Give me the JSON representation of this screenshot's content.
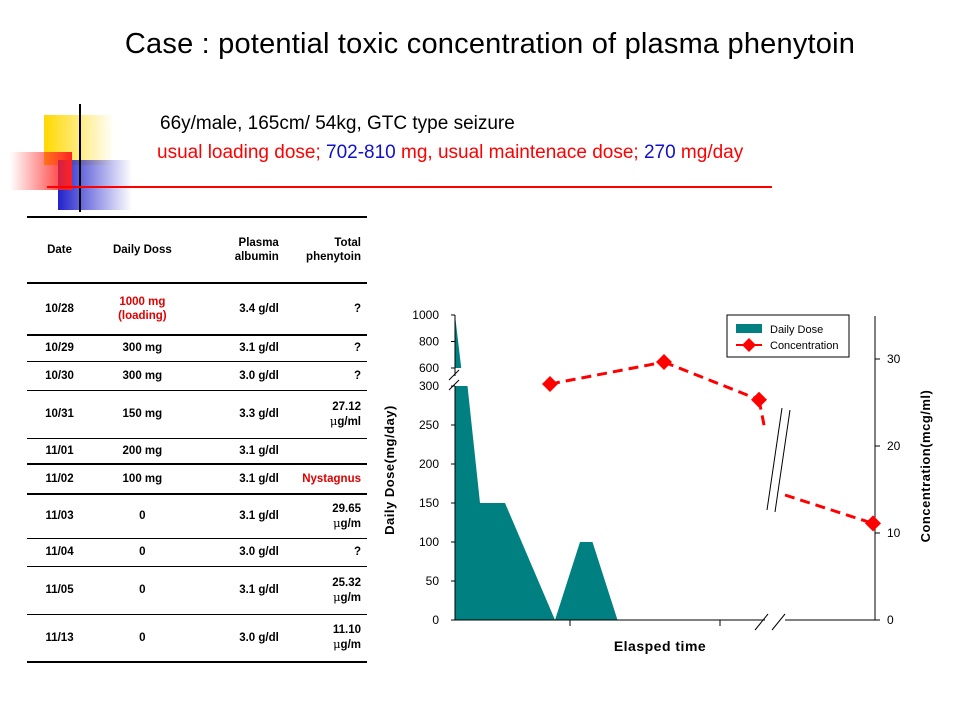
{
  "slide": {
    "title": "Case : potential toxic concentration of plasma phenytoin",
    "patient_line": "66y/male, 165cm/ 54kg, GTC type seizure",
    "dose_line": {
      "p1": "usual loading dose; ",
      "v1": "702-810",
      "p2": " mg, usual maintenace dose; ",
      "v2": "270",
      "p3": " mg/day"
    }
  },
  "table": {
    "headers": {
      "date": "Date",
      "dose": "Daily Doss",
      "albumin": [
        "Plasma",
        "albumin"
      ],
      "total": [
        "Total",
        "phenytoin"
      ]
    },
    "rows": [
      {
        "date": "10/28",
        "dose": "1000 mg\n(loading)",
        "dose_red": true,
        "albumin": "3.4 g/dl",
        "total": "?"
      },
      {
        "date": "10/29",
        "dose": "300 mg",
        "albumin": "3.1 g/dl",
        "total": "?"
      },
      {
        "date": "10/30",
        "dose": "300 mg",
        "albumin": "3.0 g/dl",
        "total": "?"
      },
      {
        "date": "10/31",
        "dose": "150 mg",
        "albumin": "3.3 g/dl",
        "total": "27.12",
        "unit": "g/ml"
      },
      {
        "date": "11/01",
        "dose": "200 mg",
        "albumin": "3.1 g/dl",
        "total": ""
      },
      {
        "date": "11/02",
        "dose": "100 mg",
        "albumin": "3.1 g/dl",
        "total": "Nystagnus",
        "total_red": true
      },
      {
        "date": "11/03",
        "dose": "0",
        "albumin": "3.1 g/dl",
        "total": "29.65",
        "unit": "g/m"
      },
      {
        "date": "11/04",
        "dose": "0",
        "albumin": "3.0 g/dl",
        "total": "?"
      },
      {
        "date": "11/05",
        "dose": "0",
        "albumin": "3.1 g/dl",
        "total": "25.32",
        "unit": "g/m"
      },
      {
        "date": "11/13",
        "dose": "0",
        "albumin": "3.0 g/dl",
        "total": "11.10",
        "unit": "g/m"
      }
    ],
    "mu_glyph": "μ"
  },
  "chart_data": {
    "type": "area",
    "xlabel": "Elasped time",
    "ylabel_left": "Daily Dose(mg/day)",
    "ylabel_right": "Concentration(mcg/ml)",
    "left_axis_lower": {
      "range": [
        0,
        300
      ],
      "ticks": [
        "0",
        "50",
        "100",
        "150",
        "200",
        "250",
        "300"
      ]
    },
    "left_axis_upper": {
      "range": [
        600,
        1000
      ],
      "ticks": [
        "600",
        "800",
        "1000"
      ]
    },
    "right_axis": {
      "range": [
        0,
        35
      ],
      "ticks": [
        "0",
        "10",
        "20",
        "30"
      ]
    },
    "legend_position": "top-right",
    "series": [
      {
        "name": "Daily Dose",
        "kind": "area",
        "color": "#008080",
        "x": [
          0,
          0,
          0.1,
          0.2,
          0.4,
          0.8,
          1.0,
          1.1,
          1.3,
          1.4
        ],
        "values": [
          1000,
          300,
          300,
          150,
          150,
          0,
          100,
          100,
          0,
          0
        ]
      },
      {
        "name": "Concentration",
        "kind": "line",
        "color": "#ff0000",
        "style": "dashed",
        "marker": "diamond",
        "x": [
          0.5,
          1.1,
          1.6,
          2.2
        ],
        "values": [
          27.12,
          29.65,
          25.32,
          11.1
        ]
      }
    ]
  }
}
